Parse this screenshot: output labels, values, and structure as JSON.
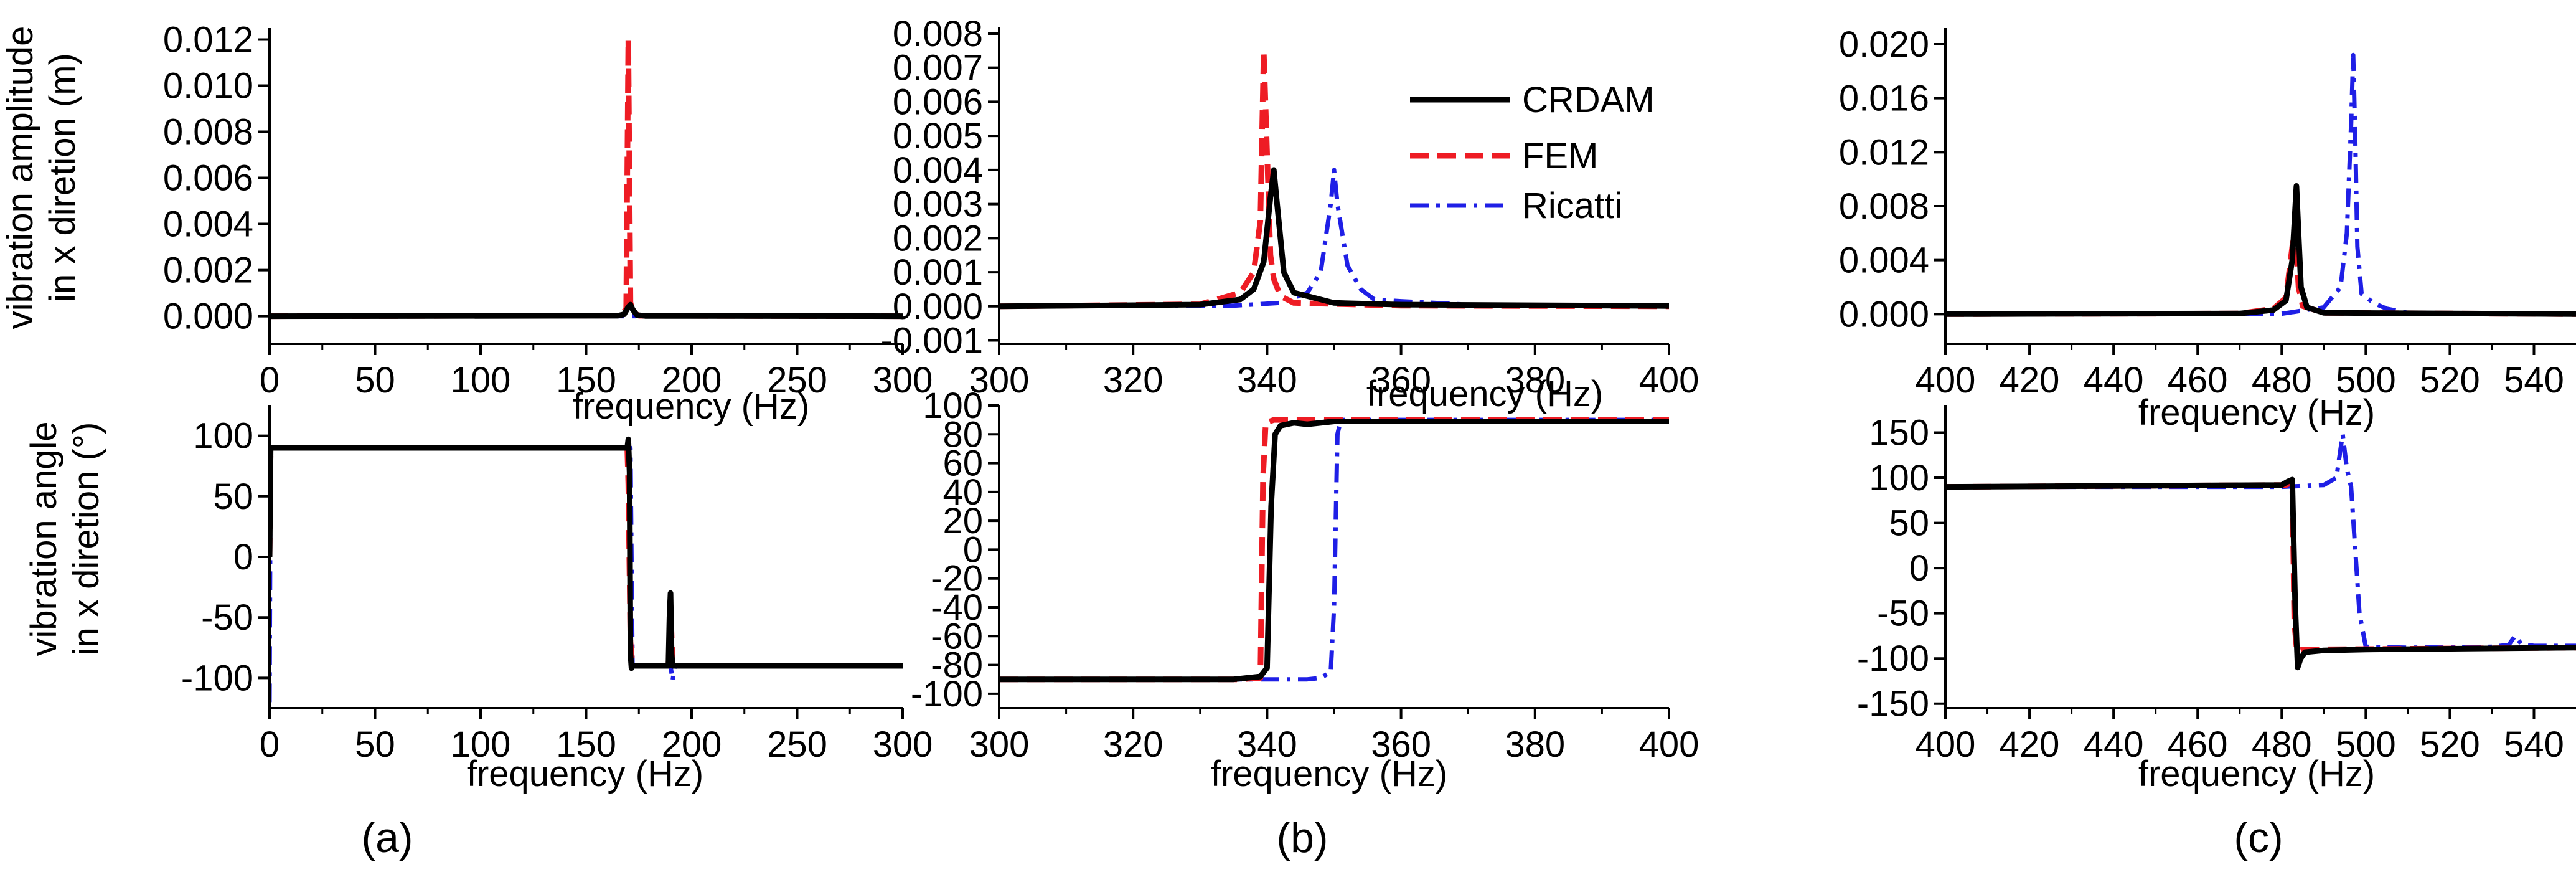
{
  "figure": {
    "panel_labels": [
      "(a)",
      "(b)",
      "(c)"
    ],
    "ylabel_amplitude": [
      "vibration amplitude",
      "in x diretion (m)"
    ],
    "ylabel_angle": [
      "vibration angle",
      "in x diretion (°)"
    ]
  },
  "legend": {
    "entries": [
      {
        "name": "CRDAM",
        "color": "#000000",
        "dash": "solid"
      },
      {
        "name": "FEM",
        "color": "#ee1c24",
        "dash": "dash"
      },
      {
        "name": "Ricatti",
        "color": "#1f1fe6",
        "dash": "dashdot"
      }
    ]
  },
  "chart_data": [
    {
      "id": "a-top",
      "type": "line",
      "panel": "(a)",
      "row": "amplitude",
      "xlabel": "frequency (Hz)",
      "ylabel": "vibration amplitude in x diretion (m)",
      "xlim": [
        0,
        300
      ],
      "ylim": [
        -0.0012,
        0.0125
      ],
      "xticks": [
        0,
        50,
        100,
        150,
        200,
        250,
        300
      ],
      "xticklabels": [
        "0",
        "50",
        "100",
        "150",
        "200",
        "250",
        "300"
      ],
      "yticks": [
        0,
        0.002,
        0.004,
        0.006,
        0.008,
        0.01,
        0.012
      ],
      "yticklabels": [
        "0.000",
        "0.002",
        "0.004",
        "0.006",
        "0.008",
        "0.010",
        "0.012"
      ],
      "series": [
        {
          "name": "CRDAM",
          "x": [
            0,
            165,
            168,
            170,
            171,
            172,
            174,
            178,
            300
          ],
          "y": [
            0,
            2e-05,
            8e-05,
            0.0004,
            0.0005,
            0.0003,
            5e-05,
            1e-05,
            0
          ]
        },
        {
          "name": "FEM",
          "x": [
            0,
            166,
            169,
            170,
            171,
            172,
            175,
            300
          ],
          "y": [
            0,
            3e-05,
            0.0003,
            0.012,
            0.0006,
            0.0002,
            2e-05,
            0
          ]
        },
        {
          "name": "Ricatti",
          "x": [
            0,
            300
          ],
          "y": [
            0,
            0
          ]
        }
      ]
    },
    {
      "id": "a-bottom",
      "type": "line",
      "panel": "(a)",
      "row": "angle",
      "xlabel": "frequency (Hz)",
      "ylabel": "vibration angle in x diretion (°)",
      "xlim": [
        0,
        300
      ],
      "ylim": [
        -125,
        125
      ],
      "xticks": [
        0,
        50,
        100,
        150,
        200,
        250,
        300
      ],
      "xticklabels": [
        "0",
        "50",
        "100",
        "150",
        "200",
        "250",
        "300"
      ],
      "yticks": [
        -100,
        -50,
        0,
        50,
        100
      ],
      "yticklabels": [
        "-100",
        "-50",
        "0",
        "50",
        "100"
      ],
      "series": [
        {
          "name": "CRDAM",
          "x": [
            0,
            0.5,
            169.5,
            170,
            170.6,
            171,
            171.5,
            172,
            189,
            189.5,
            190,
            190.5,
            191,
            300
          ],
          "y": [
            0,
            90,
            90,
            97,
            70,
            -80,
            -92,
            -90,
            -90,
            -50,
            -30,
            -80,
            -90,
            -90
          ]
        },
        {
          "name": "FEM",
          "x": [
            0,
            0.5,
            169.5,
            170,
            171,
            172,
            189,
            190,
            191,
            300
          ],
          "y": [
            0,
            90,
            90,
            60,
            -70,
            -90,
            -90,
            -40,
            -90,
            -90
          ]
        },
        {
          "name": "Ricatti",
          "x": [
            0,
            0.5,
            170,
            171,
            172,
            190,
            191,
            192,
            300
          ],
          "y": [
            -120,
            90,
            90,
            90,
            -90,
            -90,
            -102,
            -90,
            -90
          ]
        }
      ]
    },
    {
      "id": "b-top",
      "type": "line",
      "panel": "(b)",
      "row": "amplitude",
      "xlabel": "frequency (Hz)",
      "ylabel": "vibration amplitude in x diretion (m)",
      "xlim": [
        300,
        400
      ],
      "ylim": [
        -0.0011,
        0.0082
      ],
      "xticks": [
        300,
        320,
        340,
        360,
        380,
        400
      ],
      "xticklabels": [
        "300",
        "320",
        "340",
        "360",
        "380",
        "400"
      ],
      "yticks": [
        -0.001,
        0,
        0.001,
        0.002,
        0.003,
        0.004,
        0.005,
        0.006,
        0.007,
        0.008
      ],
      "yticklabels": [
        "-0.001",
        "0.000",
        "0.001",
        "0.002",
        "0.003",
        "0.004",
        "0.005",
        "0.006",
        "0.007",
        "0.008"
      ],
      "series": [
        {
          "name": "CRDAM",
          "x": [
            300,
            330,
            336,
            338,
            339.5,
            340.5,
            341,
            341.5,
            342.5,
            344,
            350,
            360,
            400
          ],
          "y": [
            0,
            5e-05,
            0.0002,
            0.0005,
            0.0013,
            0.0032,
            0.004,
            0.003,
            0.001,
            0.0004,
            0.0001,
            5e-05,
            1e-05
          ]
        },
        {
          "name": "FEM",
          "x": [
            300,
            330,
            336,
            338,
            339,
            339.5,
            340,
            340.5,
            341,
            342,
            344,
            360,
            400
          ],
          "y": [
            0,
            6e-05,
            0.0004,
            0.001,
            0.0025,
            0.0075,
            0.0045,
            0.0015,
            0.0008,
            0.0003,
            0.0001,
            2e-05,
            0
          ]
        },
        {
          "name": "Ricatti",
          "x": [
            300,
            335,
            342,
            346,
            348,
            349.5,
            350,
            350.5,
            352,
            354,
            356,
            360,
            370,
            400
          ],
          "y": [
            0,
            2e-05,
            0.0001,
            0.0004,
            0.001,
            0.003,
            0.004,
            0.003,
            0.0012,
            0.0005,
            0.0002,
            0.00015,
            5e-05,
            0
          ]
        }
      ]
    },
    {
      "id": "b-bottom",
      "type": "line",
      "panel": "(b)",
      "row": "angle",
      "xlabel": "frequency (Hz)",
      "ylabel": "vibration angle in x diretion (°)",
      "xlim": [
        300,
        400
      ],
      "ylim": [
        -110,
        100
      ],
      "xticks": [
        300,
        320,
        340,
        360,
        380,
        400
      ],
      "xticklabels": [
        "300",
        "320",
        "340",
        "360",
        "380",
        "400"
      ],
      "yticks": [
        -100,
        -80,
        -60,
        -40,
        -20,
        0,
        20,
        40,
        60,
        80,
        100
      ],
      "yticklabels": [
        "-100",
        "-80",
        "-60",
        "-40",
        "-20",
        "0",
        "20",
        "40",
        "60",
        "80",
        "100"
      ],
      "series": [
        {
          "name": "CRDAM",
          "x": [
            300,
            335,
            339,
            340,
            340.6,
            341.2,
            342,
            344,
            346,
            350,
            400
          ],
          "y": [
            -90,
            -90,
            -88,
            -82,
            30,
            80,
            86,
            88,
            87,
            89,
            89
          ]
        },
        {
          "name": "FEM",
          "x": [
            300,
            336,
            339,
            339.4,
            339.8,
            341,
            400
          ],
          "y": [
            -90,
            -90,
            -89,
            50,
            88,
            90,
            90
          ]
        },
        {
          "name": "Ricatti",
          "x": [
            300,
            346,
            348,
            349.5,
            350,
            350.5,
            351,
            400
          ],
          "y": [
            -90,
            -90,
            -89,
            -85,
            -40,
            80,
            90,
            90
          ]
        }
      ]
    },
    {
      "id": "c-top",
      "type": "line",
      "panel": "(c)",
      "row": "amplitude",
      "xlabel": "frequency (Hz)",
      "ylabel": "vibration amplitude in x diretion (m)",
      "xlim": [
        400,
        550
      ],
      "ylim": [
        -0.0022,
        0.0212
      ],
      "xticks": [
        400,
        420,
        440,
        460,
        480,
        500,
        520,
        540
      ],
      "xticklabels": [
        "400",
        "420",
        "440",
        "460",
        "480",
        "500",
        "520",
        "540"
      ],
      "yticks": [
        0,
        0.004,
        0.008,
        0.012,
        0.016,
        0.02
      ],
      "yticklabels": [
        "0.000",
        "0.004",
        "0.008",
        "0.012",
        "0.016",
        "0.020"
      ],
      "series": [
        {
          "name": "CRDAM",
          "x": [
            400,
            470,
            478,
            481,
            482.5,
            483.5,
            484,
            484.6,
            486,
            490,
            550
          ],
          "y": [
            0,
            5e-05,
            0.0003,
            0.001,
            0.004,
            0.0095,
            0.006,
            0.002,
            0.0005,
            0.0001,
            0
          ]
        },
        {
          "name": "FEM",
          "x": [
            400,
            470,
            478,
            481,
            482.5,
            483.2,
            484,
            485,
            490,
            550
          ],
          "y": [
            0,
            5e-05,
            0.0004,
            0.0012,
            0.005,
            0.0065,
            0.002,
            0.0006,
            0.0001,
            0
          ]
        },
        {
          "name": "Ricatti",
          "x": [
            400,
            480,
            490,
            494,
            495.5,
            496.5,
            497,
            497.5,
            498,
            499,
            502,
            505,
            510,
            550
          ],
          "y": [
            0,
            3e-05,
            0.0005,
            0.002,
            0.006,
            0.014,
            0.0192,
            0.013,
            0.005,
            0.0015,
            0.0008,
            0.0004,
            0.0001,
            0
          ]
        }
      ]
    },
    {
      "id": "c-bottom",
      "type": "line",
      "panel": "(c)",
      "row": "angle",
      "xlabel": "frequency (Hz)",
      "ylabel": "vibration angle in x diretion (°)",
      "xlim": [
        400,
        550
      ],
      "ylim": [
        -155,
        180
      ],
      "xticks": [
        400,
        420,
        440,
        460,
        480,
        500,
        520,
        540
      ],
      "xticklabels": [
        "400",
        "420",
        "440",
        "460",
        "480",
        "500",
        "520",
        "540"
      ],
      "yticks": [
        -150,
        -100,
        -50,
        0,
        50,
        100,
        150
      ],
      "yticklabels": [
        "-150",
        "-100",
        "-50",
        "0",
        "50",
        "100",
        "150"
      ],
      "series": [
        {
          "name": "CRDAM",
          "x": [
            400,
            480,
            481.5,
            482.5,
            483.2,
            483.8,
            484.5,
            485.5,
            490,
            500,
            550
          ],
          "y": [
            90,
            92,
            96,
            98,
            -40,
            -110,
            -100,
            -93,
            -91,
            -90,
            -88
          ]
        },
        {
          "name": "FEM",
          "x": [
            400,
            481,
            482.5,
            483,
            483.6,
            485,
            550
          ],
          "y": [
            90,
            92,
            95,
            -60,
            -92,
            -90,
            -88
          ]
        },
        {
          "name": "Ricatti",
          "x": [
            400,
            480,
            490,
            493,
            494.5,
            495.5,
            496.5,
            498.5,
            500,
            510,
            530,
            534,
            535.5,
            537,
            540,
            550
          ],
          "y": [
            90,
            90,
            92,
            100,
            148,
            110,
            90,
            -50,
            -87,
            -88,
            -87,
            -85,
            -75,
            -84,
            -86,
            -86
          ]
        }
      ]
    }
  ]
}
